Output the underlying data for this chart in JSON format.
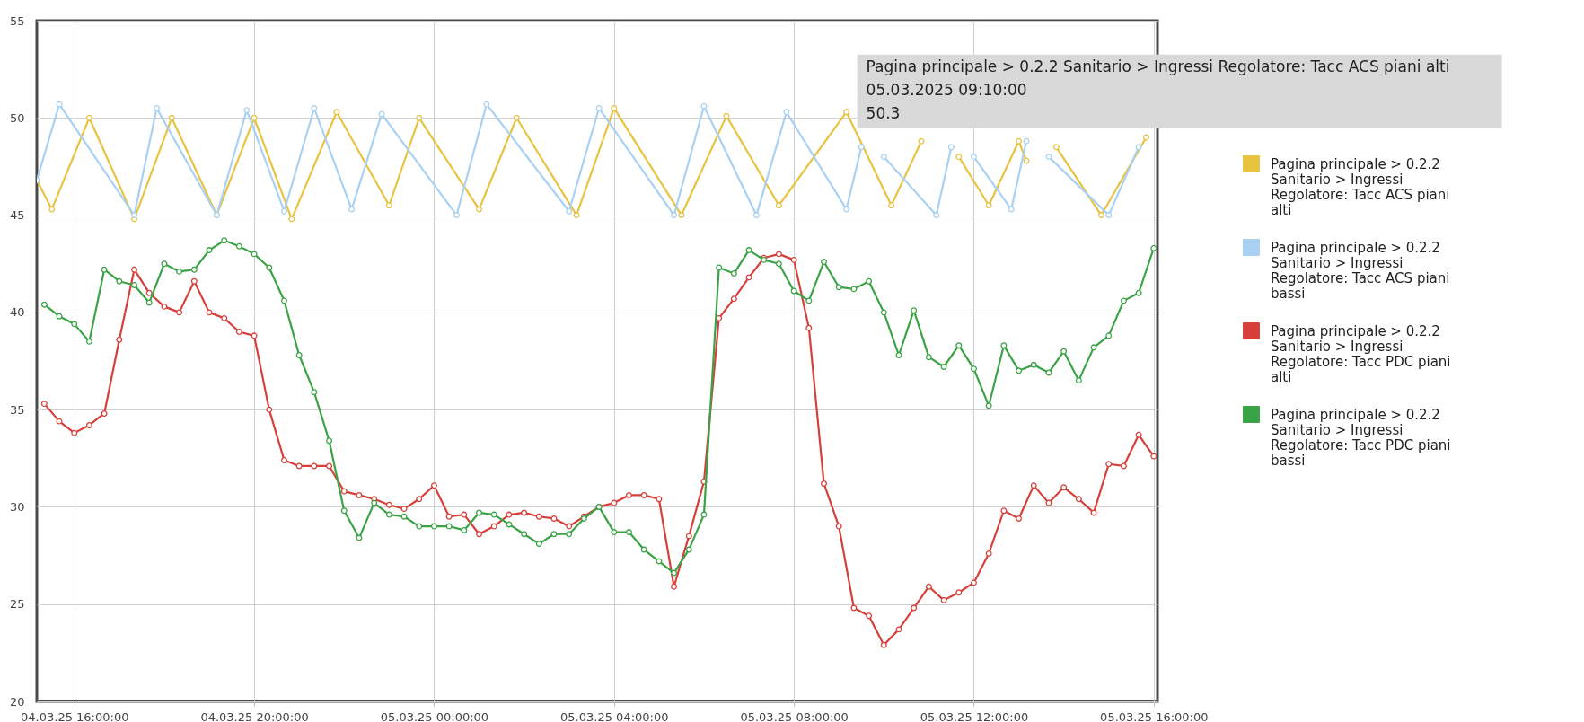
{
  "chart_data": {
    "type": "line",
    "x": [
      "2025-03-04T15:20",
      "2025-03-04T15:40",
      "2025-03-04T16:00",
      "2025-03-04T16:20",
      "2025-03-04T16:40",
      "2025-03-04T17:00",
      "2025-03-04T17:20",
      "2025-03-04T17:40",
      "2025-03-04T18:00",
      "2025-03-04T18:20",
      "2025-03-04T18:40",
      "2025-03-04T19:00",
      "2025-03-04T19:20",
      "2025-03-04T19:40",
      "2025-03-04T20:00",
      "2025-03-04T20:20",
      "2025-03-04T20:40",
      "2025-03-04T21:00",
      "2025-03-04T21:20",
      "2025-03-04T21:40",
      "2025-03-04T22:00",
      "2025-03-04T22:20",
      "2025-03-04T22:40",
      "2025-03-04T23:00",
      "2025-03-04T23:20",
      "2025-03-04T23:40",
      "2025-03-05T00:00",
      "2025-03-05T00:20",
      "2025-03-05T00:40",
      "2025-03-05T01:00",
      "2025-03-05T01:20",
      "2025-03-05T01:40",
      "2025-03-05T02:00",
      "2025-03-05T02:20",
      "2025-03-05T02:40",
      "2025-03-05T03:00",
      "2025-03-05T03:20",
      "2025-03-05T03:40",
      "2025-03-05T04:00",
      "2025-03-05T04:20",
      "2025-03-05T04:40",
      "2025-03-05T05:00",
      "2025-03-05T05:20",
      "2025-03-05T05:40",
      "2025-03-05T06:00",
      "2025-03-05T06:20",
      "2025-03-05T06:40",
      "2025-03-05T07:00",
      "2025-03-05T07:20",
      "2025-03-05T07:40",
      "2025-03-05T08:00",
      "2025-03-05T08:20",
      "2025-03-05T08:40",
      "2025-03-05T09:00",
      "2025-03-05T09:20",
      "2025-03-05T09:40",
      "2025-03-05T10:00",
      "2025-03-05T10:20",
      "2025-03-05T10:40",
      "2025-03-05T11:00",
      "2025-03-05T11:20",
      "2025-03-05T11:40",
      "2025-03-05T12:00",
      "2025-03-05T12:20",
      "2025-03-05T12:40",
      "2025-03-05T13:00",
      "2025-03-05T13:20",
      "2025-03-05T13:40",
      "2025-03-05T14:00",
      "2025-03-05T14:20",
      "2025-03-05T14:40",
      "2025-03-05T15:00",
      "2025-03-05T15:20",
      "2025-03-05T15:40",
      "2025-03-05T16:00"
    ],
    "series": [
      {
        "name": "Pagina principale > 0.2.2 Sanitario > Ingressi Regolatore: Tacc ACS piani alti",
        "color": "#e8c340",
        "x": [
          "2025-03-04T15:10",
          "2025-03-04T15:30",
          "2025-03-04T16:20",
          "2025-03-04T17:20",
          "2025-03-04T18:10",
          "2025-03-04T19:10",
          "2025-03-04T20:00",
          "2025-03-04T20:50",
          "2025-03-04T21:50",
          "2025-03-04T23:00",
          "2025-03-04T23:40",
          "2025-03-05T01:00",
          "2025-03-05T01:50",
          "2025-03-05T03:10",
          "2025-03-05T04:00",
          "2025-03-05T05:30",
          "2025-03-05T06:30",
          "2025-03-05T07:40",
          "2025-03-05T09:10",
          "2025-03-05T10:10",
          "2025-03-05T10:50",
          "2025-03-05T11:10",
          "2025-03-05T11:40",
          "2025-03-05T12:20",
          "2025-03-05T13:00",
          "2025-03-05T13:10",
          "2025-03-05T13:30",
          "2025-03-05T13:50",
          "2025-03-05T14:50",
          "2025-03-05T15:50"
        ],
        "values": [
          46.8,
          45.3,
          50.0,
          44.8,
          50.0,
          45.0,
          50.0,
          44.8,
          50.3,
          45.5,
          50.0,
          45.3,
          50.0,
          45.0,
          50.5,
          45.0,
          50.1,
          45.5,
          50.3,
          45.5,
          48.8,
          null,
          48.0,
          45.5,
          48.8,
          47.8,
          null,
          48.5,
          45.0,
          49.0
        ]
      },
      {
        "name": "Pagina principale > 0.2.2 Sanitario > Ingressi Regolatore: Tacc ACS piani bassi",
        "color": "#a8d1f3",
        "x": [
          "2025-03-04T15:10",
          "2025-03-04T15:40",
          "2025-03-04T17:20",
          "2025-03-04T17:50",
          "2025-03-04T19:10",
          "2025-03-04T19:50",
          "2025-03-04T20:40",
          "2025-03-04T21:20",
          "2025-03-04T22:10",
          "2025-03-04T22:50",
          "2025-03-05T00:30",
          "2025-03-05T01:10",
          "2025-03-05T03:00",
          "2025-03-05T03:40",
          "2025-03-05T05:20",
          "2025-03-05T06:00",
          "2025-03-05T07:10",
          "2025-03-05T07:50",
          "2025-03-05T09:10",
          "2025-03-05T09:30",
          "2025-03-05T09:40",
          "2025-03-05T10:00",
          "2025-03-05T11:10",
          "2025-03-05T11:30",
          "2025-03-05T11:40",
          "2025-03-05T12:00",
          "2025-03-05T12:50",
          "2025-03-05T13:10",
          "2025-03-05T13:20",
          "2025-03-05T13:40",
          "2025-03-05T15:00",
          "2025-03-05T15:40"
        ],
        "values": [
          46.8,
          50.7,
          45.0,
          50.5,
          45.0,
          50.4,
          45.2,
          50.5,
          45.3,
          50.2,
          45.0,
          50.7,
          45.2,
          50.5,
          45.0,
          50.6,
          45.0,
          50.3,
          45.3,
          48.5,
          null,
          48.0,
          45.0,
          48.5,
          null,
          48.0,
          45.3,
          48.8,
          null,
          48.0,
          45.0,
          48.5
        ]
      },
      {
        "name": "Pagina principale > 0.2.2 Sanitario > Ingressi Regolatore: Tacc PDC piani alti",
        "color": "#d7403a",
        "values": [
          35.3,
          34.4,
          33.8,
          34.2,
          34.8,
          38.6,
          42.2,
          41.0,
          40.3,
          40.0,
          41.6,
          40.0,
          39.7,
          39.0,
          38.8,
          35.0,
          32.4,
          32.1,
          32.1,
          32.1,
          30.8,
          30.6,
          30.4,
          30.1,
          29.9,
          30.4,
          31.1,
          29.5,
          29.6,
          28.6,
          29.0,
          29.6,
          29.7,
          29.5,
          29.4,
          29.0,
          29.5,
          30.0,
          30.2,
          30.6,
          30.6,
          30.4,
          25.9,
          28.5,
          31.3,
          39.7,
          40.7,
          41.8,
          42.8,
          43.0,
          42.7,
          39.2,
          31.2,
          29.0,
          24.8,
          24.4,
          22.9,
          23.7,
          24.8,
          25.9,
          25.2,
          25.6,
          26.1,
          27.6,
          29.8,
          29.4,
          31.1,
          30.2,
          31.0,
          30.4,
          29.7,
          32.2,
          32.1,
          33.7,
          32.6
        ]
      },
      {
        "name": "Pagina principale > 0.2.2 Sanitario > Ingressi Regolatore: Tacc PDC piani bassi",
        "color": "#3aa346",
        "values": [
          40.4,
          39.8,
          39.4,
          38.5,
          42.2,
          41.6,
          41.4,
          40.5,
          42.5,
          42.1,
          42.2,
          43.2,
          43.7,
          43.4,
          43.0,
          42.3,
          40.6,
          37.8,
          35.9,
          33.4,
          29.8,
          28.4,
          30.2,
          29.6,
          29.5,
          29.0,
          29.0,
          29.0,
          28.8,
          29.7,
          29.6,
          29.1,
          28.6,
          28.1,
          28.6,
          28.6,
          29.4,
          30.0,
          28.7,
          28.7,
          27.8,
          27.2,
          26.6,
          27.8,
          29.6,
          42.3,
          42.0,
          43.2,
          42.7,
          42.5,
          41.1,
          40.6,
          42.6,
          41.3,
          41.2,
          41.6,
          40.0,
          37.8,
          40.1,
          37.7,
          37.2,
          38.3,
          37.1,
          35.2,
          38.3,
          37.0,
          37.3,
          36.9,
          38.0,
          36.5,
          38.2,
          38.8,
          40.6,
          41.0,
          43.3
        ]
      }
    ],
    "xlim": [
      "2025-03-04T15:10",
      "2025-03-05T16:05"
    ],
    "xticks": [
      {
        "value": "2025-03-04T16:00",
        "label": "04.03.25 16:00:00"
      },
      {
        "value": "2025-03-04T20:00",
        "label": "04.03.25 20:00:00"
      },
      {
        "value": "2025-03-05T00:00",
        "label": "05.03.25 00:00:00"
      },
      {
        "value": "2025-03-05T04:00",
        "label": "05.03.25 04:00:00"
      },
      {
        "value": "2025-03-05T08:00",
        "label": "05.03.25 08:00:00"
      },
      {
        "value": "2025-03-05T12:00",
        "label": "05.03.25 12:00:00"
      },
      {
        "value": "2025-03-05T16:00",
        "label": "05.03.25 16:00:00"
      }
    ],
    "ylim": [
      20,
      55
    ],
    "yticks": [
      20,
      25,
      30,
      35,
      40,
      45,
      50,
      55
    ],
    "grid": true,
    "legend": "right",
    "marker": "circle",
    "line_style": "solid",
    "annotations": [
      {
        "text": "Pagina principale > 0.2.2 Sanitario > Ingressi Regolatore: Tacc ACS piani alti\n05.03.2025 09:10:00\n50.3",
        "x": "2025-03-05T09:10",
        "y": 50.3
      }
    ]
  }
}
